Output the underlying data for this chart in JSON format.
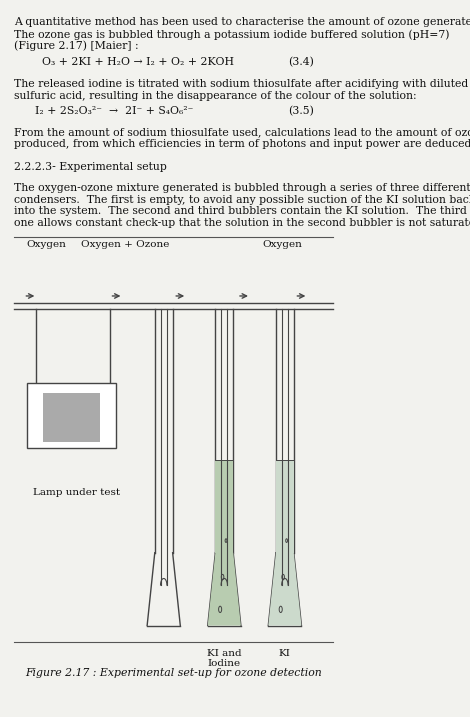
{
  "bg_color": "#f2f2ee",
  "text_color": "#111111",
  "fig_width": 4.7,
  "fig_height": 7.17,
  "dpi": 100,
  "fs": 7.8,
  "lh": 0.0165,
  "para1_lines": [
    "A quantitative method has been used to characterise the amount of ozone generated.",
    "The ozone gas is bubbled through a potassium iodide buffered solution (pH=7)",
    "(Figure 2.17) [Maier] :"
  ],
  "eq1_text": "O₃ + 2KI + H₂O → I₂ + O₂ + 2KOH",
  "eq1_num": "(3.4)",
  "eq1_indent": 0.12,
  "para2_lines": [
    "The released iodine is titrated with sodium thiosulfate after acidifying with diluted",
    "sulfuric acid, resulting in the disappearance of the colour of the solution:"
  ],
  "eq2_text": "I₂ + 2S₂O₃²⁻  →  2I⁻ + S₄O₆²⁻",
  "eq2_num": "(3.5)",
  "eq2_indent": 0.1,
  "para3_lines": [
    "From the amount of sodium thiosulfate used, calculations lead to the amount of ozone",
    "produced, from which efficiencies in term of photons and input power are deduced."
  ],
  "section_title": "2.2.2.3- Experimental setup",
  "para4_lines": [
    "The oxygen-ozone mixture generated is bubbled through a series of three different",
    "condensers.  The first is empty, to avoid any possible suction of the KI solution back",
    "into the system.  The second and third bubblers contain the KI solution.  The third",
    "one allows constant check-up that the solution in the second bubbler is not saturated."
  ],
  "fig_caption": "Figure 2.17 : Experimental set-up for ozone detection",
  "label_oxygen_left": "Oxygen",
  "label_oxygen_ozone": "Oxygen + Ozone",
  "label_oxygen_right": "Oxygen",
  "label_lamp": "Lamp under test",
  "label_ki_iodine": "KI and\nIodine",
  "label_ki": "KI",
  "line_color": "#555555",
  "draw_color": "#444444",
  "liquid_color1": "#b8ccb0",
  "liquid_color2": "#ccdacc"
}
